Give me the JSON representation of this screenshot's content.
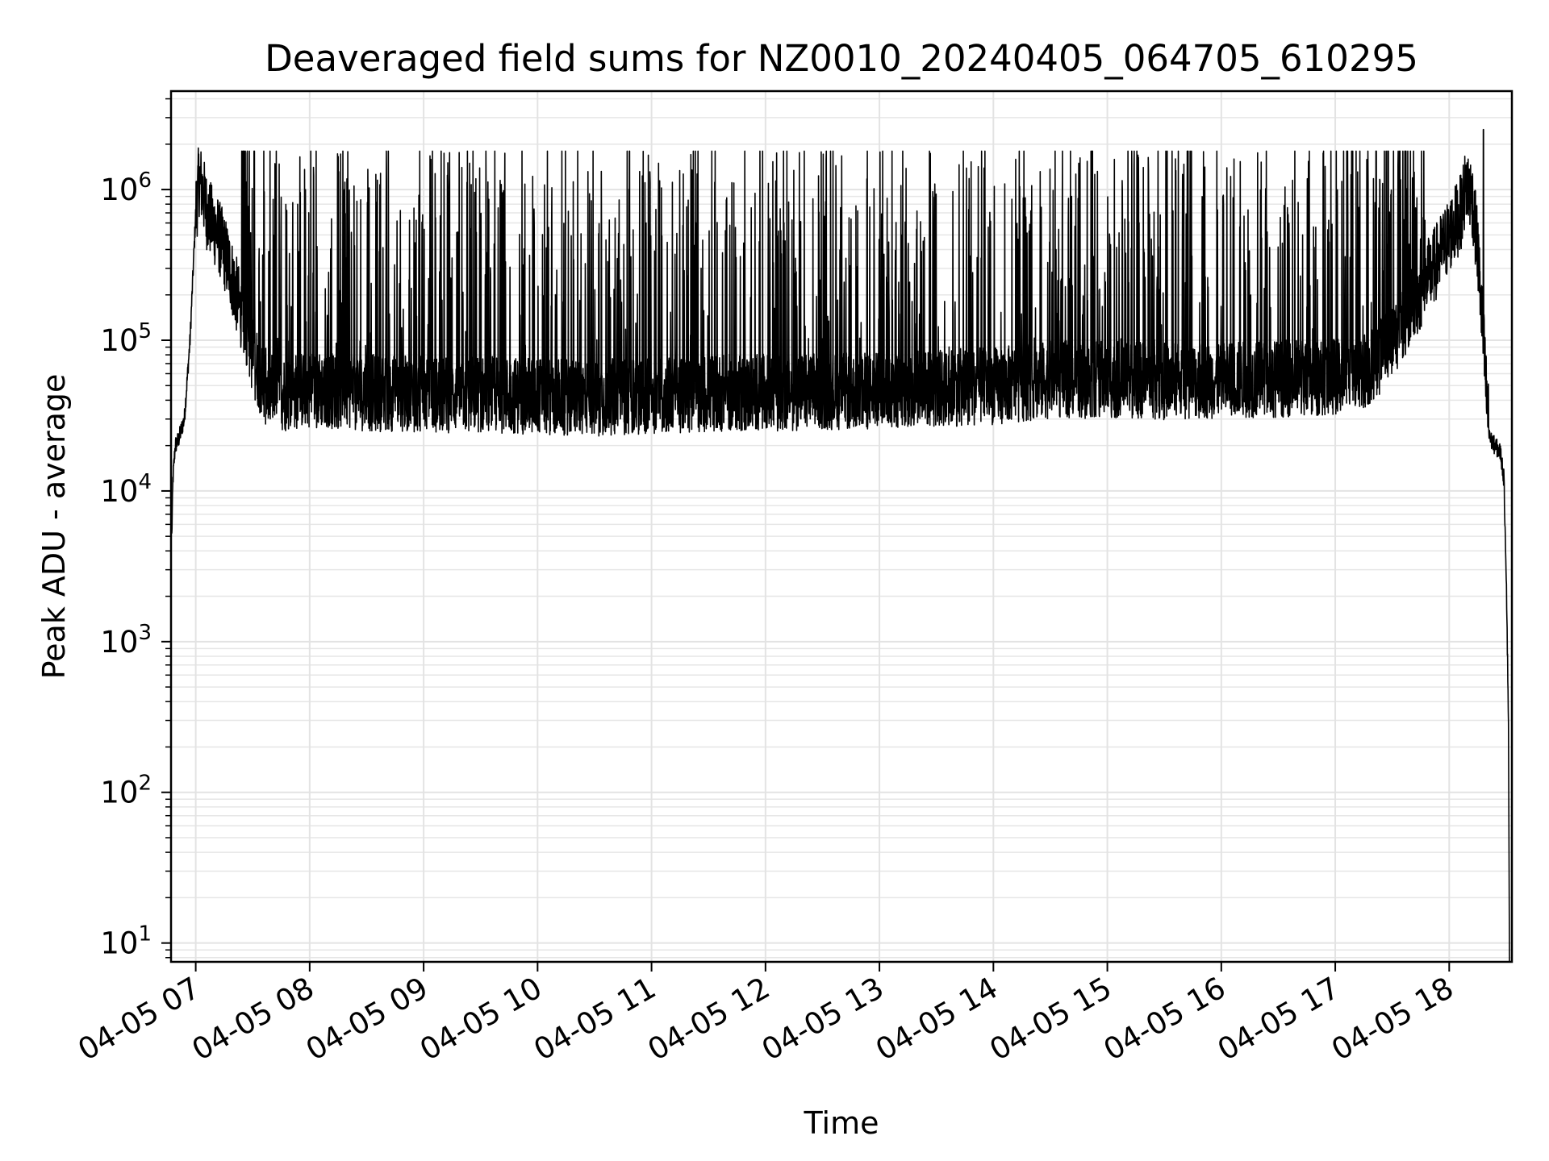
{
  "chart_data": {
    "type": "line",
    "title": "Deaveraged field sums for NZ0010_20240405_064705_610295",
    "xlabel": "Time",
    "ylabel": "Peak ADU - average",
    "yscale": "log",
    "ylim": [
      7.5,
      4500000
    ],
    "xlim": [
      "04-05 06:47",
      "04-05 18:33"
    ],
    "grid": true,
    "x_tick_labels": [
      "04-05 07",
      "04-05 08",
      "04-05 09",
      "04-05 10",
      "04-05 11",
      "04-05 12",
      "04-05 13",
      "04-05 14",
      "04-05 15",
      "04-05 16",
      "04-05 17",
      "04-05 18"
    ],
    "x_tick_hours": [
      7,
      8,
      9,
      10,
      11,
      12,
      13,
      14,
      15,
      16,
      17,
      18
    ],
    "y_tick_labels": [
      {
        "base": "10",
        "exp": "1"
      },
      {
        "base": "10",
        "exp": "2"
      },
      {
        "base": "10",
        "exp": "3"
      },
      {
        "base": "10",
        "exp": "4"
      },
      {
        "base": "10",
        "exp": "5"
      },
      {
        "base": "10",
        "exp": "6"
      }
    ],
    "y_tick_values": [
      10,
      100,
      1000,
      10000,
      100000,
      1000000
    ],
    "series": [
      {
        "color": "#000000",
        "x_hours": [
          6.79,
          6.8,
          6.82,
          6.85,
          6.9,
          6.95,
          7.0,
          7.03,
          7.06,
          7.1,
          7.2,
          7.3,
          7.4,
          7.5,
          7.6,
          7.7,
          7.8,
          8.0,
          8.5,
          9.0,
          9.5,
          10.0,
          10.5,
          11.0,
          11.5,
          12.0,
          12.5,
          13.0,
          13.5,
          14.0,
          14.5,
          15.0,
          15.5,
          16.0,
          16.5,
          17.0,
          17.3,
          17.5,
          17.7,
          17.9,
          18.0,
          18.1,
          18.15,
          18.2,
          18.25,
          18.3,
          18.33,
          18.36,
          18.4,
          18.45,
          18.48,
          18.5,
          18.52
        ],
        "baseline": [
          5000,
          12000,
          20000,
          22000,
          30000,
          100000,
          700000,
          1200000,
          1000000,
          700000,
          500000,
          300000,
          150000,
          80000,
          50000,
          45000,
          45000,
          48000,
          45000,
          44000,
          44000,
          43000,
          42000,
          43000,
          45000,
          45000,
          46000,
          46000,
          48000,
          50000,
          55000,
          55000,
          54000,
          55000,
          56000,
          58000,
          65000,
          100000,
          180000,
          350000,
          500000,
          700000,
          1100000,
          900000,
          400000,
          100000,
          40000,
          22000,
          20000,
          18000,
          12000,
          3000,
          300
        ],
        "noise_band": [
          0.55,
          1.8
        ],
        "spike_max": 1800000,
        "spike_count": 900,
        "peak_value": 2500000,
        "peak_hour": 18.3
      }
    ]
  }
}
